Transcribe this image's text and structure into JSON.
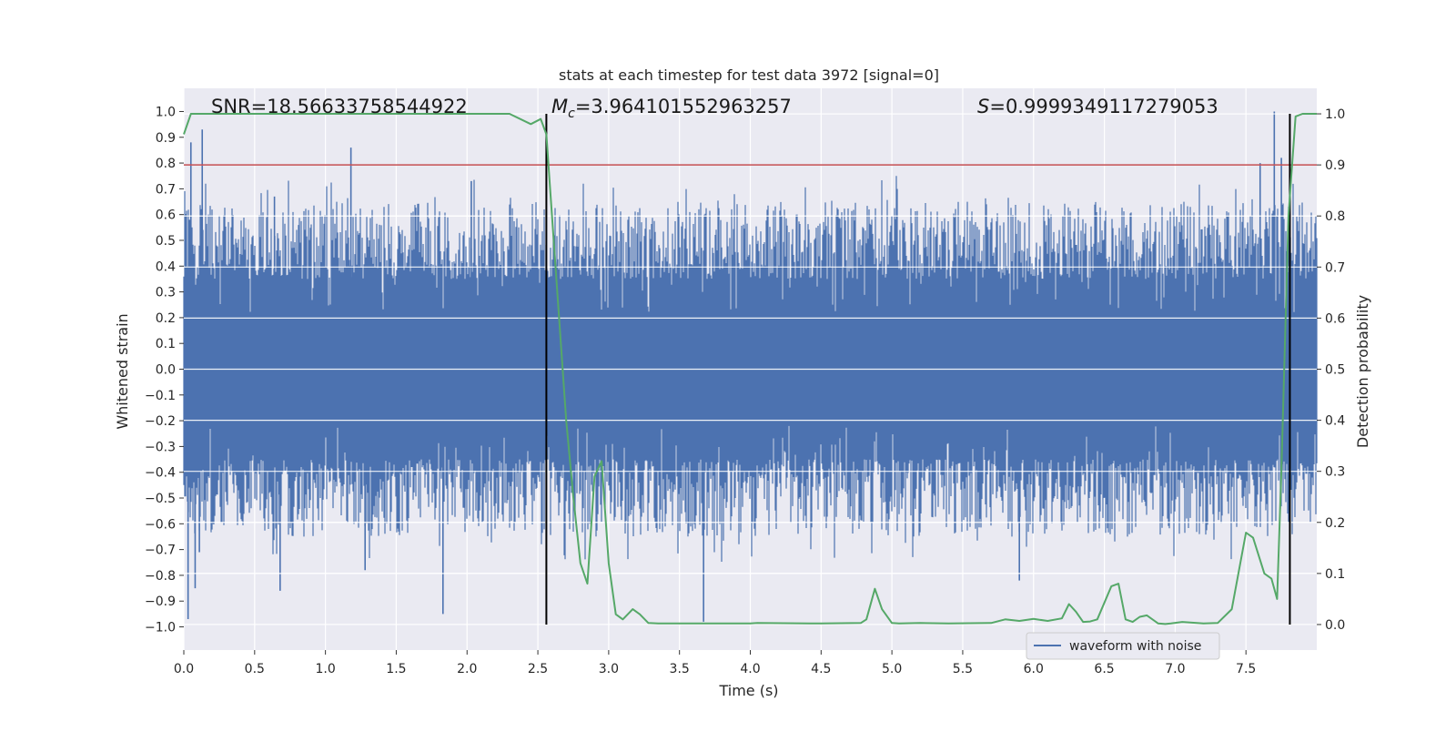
{
  "chart_data": {
    "type": "line",
    "title": "stats at each timestep for test data 3972 [signal=0]",
    "xlabel": "Time (s)",
    "ylabel": "Whitened strain",
    "y2label": "Detection probability",
    "xlim": [
      0.0,
      8.0
    ],
    "ylim": [
      -1.09,
      1.09
    ],
    "y2lim": [
      -0.05,
      1.05
    ],
    "x_ticks": [
      0.0,
      0.5,
      1.0,
      1.5,
      2.0,
      2.5,
      3.0,
      3.5,
      4.0,
      4.5,
      5.0,
      5.5,
      6.0,
      6.5,
      7.0,
      7.5
    ],
    "x_tick_labels": [
      "0.0",
      "0.5",
      "1.0",
      "1.5",
      "2.0",
      "2.5",
      "3.0",
      "3.5",
      "4.0",
      "4.5",
      "5.0",
      "5.5",
      "6.0",
      "6.5",
      "7.0",
      "7.5"
    ],
    "y_ticks": [
      -1.0,
      -0.9,
      -0.8,
      -0.7,
      -0.6,
      -0.5,
      -0.4,
      -0.3,
      -0.2,
      -0.1,
      0.0,
      0.1,
      0.2,
      0.3,
      0.4,
      0.5,
      0.6,
      0.7,
      0.8,
      0.9,
      1.0
    ],
    "y_tick_labels": [
      "−1.0",
      "−0.9",
      "−0.8",
      "−0.7",
      "−0.6",
      "−0.5",
      "−0.4",
      "−0.3",
      "−0.2",
      "−0.1",
      "0.0",
      "0.1",
      "0.2",
      "0.3",
      "0.4",
      "0.5",
      "0.6",
      "0.7",
      "0.8",
      "0.9",
      "1.0"
    ],
    "y2_ticks": [
      0.0,
      0.1,
      0.2,
      0.3,
      0.4,
      0.5,
      0.6,
      0.7,
      0.8,
      0.9,
      1.0
    ],
    "y2_tick_labels": [
      "0.0",
      "0.1",
      "0.2",
      "0.3",
      "0.4",
      "0.5",
      "0.6",
      "0.7",
      "0.8",
      "0.9",
      "1.0"
    ],
    "grid": true,
    "legend": {
      "position": "lower-right",
      "entries": [
        {
          "label": "waveform with noise",
          "color": "#4c72b0"
        }
      ]
    },
    "annotations": {
      "snr": "SNR=18.56633758544922",
      "mc_symbol": "M",
      "mc_subscript": "c",
      "mc_value": "=3.964101552963257",
      "s_symbol": "S",
      "s_value": "=0.9999349117279053"
    },
    "threshold": {
      "y2": 0.9,
      "color": "#c44e52"
    },
    "vertical_lines": [
      2.56,
      7.81
    ],
    "waveform": {
      "name": "waveform with noise",
      "color": "#4c72b0",
      "core_band": [
        -0.2,
        0.2
      ],
      "typical_spike_range": [
        0.35,
        0.65
      ],
      "peaks": [
        {
          "x": 0.03,
          "y": -0.97
        },
        {
          "x": 0.04,
          "y": 0.58
        },
        {
          "x": 0.05,
          "y": 0.88
        },
        {
          "x": 0.08,
          "y": -0.85
        },
        {
          "x": 0.11,
          "y": -0.71
        },
        {
          "x": 0.13,
          "y": 0.93
        },
        {
          "x": 0.64,
          "y": 0.67
        },
        {
          "x": 0.68,
          "y": -0.86
        },
        {
          "x": 1.18,
          "y": 0.86
        },
        {
          "x": 1.28,
          "y": -0.78
        },
        {
          "x": 1.83,
          "y": -0.95
        },
        {
          "x": 2.03,
          "y": 0.73
        },
        {
          "x": 3.67,
          "y": -0.98
        },
        {
          "x": 5.9,
          "y": -0.82
        },
        {
          "x": 7.6,
          "y": 0.8
        },
        {
          "x": 7.7,
          "y": 1.0
        },
        {
          "x": 7.75,
          "y": 0.82
        }
      ]
    },
    "probability": {
      "name": "Detection probability",
      "color": "#55a868",
      "x": [
        0.0,
        0.05,
        0.1,
        0.5,
        1.0,
        1.5,
        2.0,
        2.3,
        2.45,
        2.52,
        2.56,
        2.6,
        2.65,
        2.7,
        2.75,
        2.8,
        2.85,
        2.9,
        2.95,
        3.0,
        3.05,
        3.1,
        3.17,
        3.22,
        3.28,
        3.35,
        3.5,
        4.0,
        4.05,
        4.5,
        4.78,
        4.82,
        4.88,
        4.93,
        5.0,
        5.05,
        5.2,
        5.4,
        5.7,
        5.8,
        5.9,
        6.0,
        6.1,
        6.2,
        6.25,
        6.3,
        6.35,
        6.4,
        6.45,
        6.55,
        6.6,
        6.65,
        6.7,
        6.75,
        6.8,
        6.88,
        6.93,
        6.97,
        7.05,
        7.2,
        7.3,
        7.4,
        7.5,
        7.55,
        7.63,
        7.68,
        7.72,
        7.75,
        7.8,
        7.85,
        7.9,
        7.95,
        8.0
      ],
      "y": [
        0.96,
        1.0,
        1.0,
        1.0,
        1.0,
        1.0,
        1.0,
        1.0,
        0.98,
        0.99,
        0.96,
        0.8,
        0.6,
        0.4,
        0.25,
        0.12,
        0.08,
        0.29,
        0.32,
        0.12,
        0.02,
        0.01,
        0.03,
        0.02,
        0.003,
        0.002,
        0.002,
        0.002,
        0.003,
        0.002,
        0.003,
        0.01,
        0.07,
        0.03,
        0.003,
        0.002,
        0.003,
        0.002,
        0.003,
        0.01,
        0.007,
        0.011,
        0.007,
        0.012,
        0.04,
        0.025,
        0.005,
        0.006,
        0.01,
        0.075,
        0.08,
        0.01,
        0.005,
        0.015,
        0.018,
        0.002,
        0.001,
        0.002,
        0.005,
        0.002,
        0.003,
        0.03,
        0.18,
        0.17,
        0.1,
        0.09,
        0.05,
        0.3,
        0.8,
        0.995,
        1.0,
        1.0,
        1.0
      ]
    }
  }
}
